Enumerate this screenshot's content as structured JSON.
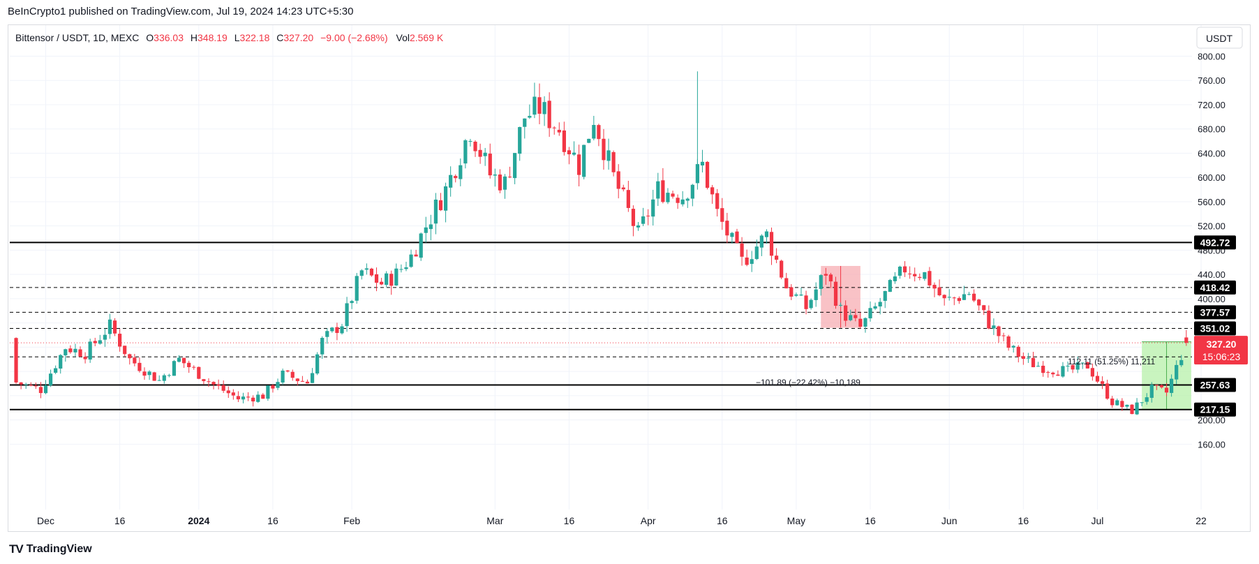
{
  "publisher_line": "BeInCrypto1 published on TradingView.com, Jul 19, 2024 14:23 UTC+5:30",
  "footer": {
    "brand": "TradingView"
  },
  "legend": {
    "symbol": "Bittensor / USDT, 1D, MEXC",
    "o_label": "O",
    "o_value": "336.03",
    "h_label": "H",
    "h_value": "348.19",
    "l_label": "L",
    "l_value": "322.18",
    "c_label": "C",
    "c_value": "327.20",
    "change": "−9.00 (−2.68%)",
    "vol_label": "Vol",
    "vol_value": "2.569 K"
  },
  "currency_button": "USDT",
  "colors": {
    "up": "#26a69a",
    "down": "#f23645",
    "level": "#000000",
    "red_box": "#f7a8ae",
    "green_box": "#b7f0a9",
    "last_price": "#f23645"
  },
  "chart_data": {
    "type": "candlestick",
    "title": "Bittensor / USDT, 1D, MEXC",
    "y_axis": {
      "ticks": [
        "800.00",
        "760.00",
        "720.00",
        "680.00",
        "640.00",
        "600.00",
        "560.00",
        "520.00",
        "480.00",
        "440.00",
        "400.00",
        "200.00",
        "160.00"
      ],
      "tick_values": [
        800,
        760,
        720,
        680,
        640,
        600,
        560,
        520,
        480,
        440,
        400,
        200,
        160
      ],
      "range": [
        138,
        820
      ]
    },
    "x_axis": {
      "labels": [
        "Dec",
        "16",
        "2024",
        "16",
        "Feb",
        "Mar",
        "16",
        "Apr",
        "16",
        "May",
        "16",
        "Jun",
        "16",
        "Jul",
        "22"
      ],
      "label_dates": [
        "2023-12-01",
        "2023-12-16",
        "2024-01-01",
        "2024-01-16",
        "2024-02-01",
        "2024-03-01",
        "2024-03-16",
        "2024-04-01",
        "2024-04-16",
        "2024-05-01",
        "2024-05-16",
        "2024-06-01",
        "2024-06-16",
        "2024-07-01",
        "2024-07-22"
      ],
      "range": [
        "2023-11-24",
        "2024-07-31"
      ]
    },
    "levels": [
      {
        "value": 492.72,
        "label": "492.72",
        "style": "solid"
      },
      {
        "value": 418.42,
        "label": "418.42",
        "style": "dashed"
      },
      {
        "value": 377.57,
        "label": "377.57",
        "style": "dashed"
      },
      {
        "value": 351.02,
        "label": "351.02",
        "style": "dashed"
      },
      {
        "value": 304.05,
        "label": "304.05",
        "style": "dashed"
      },
      {
        "value": 257.63,
        "label": "257.63",
        "style": "solid"
      },
      {
        "value": 217.15,
        "label": "217.15",
        "style": "solid"
      }
    ],
    "last_price": {
      "value": 327.2,
      "label": "327.20",
      "countdown": "15:06:23"
    },
    "measurements": [
      {
        "kind": "down",
        "start": "2024-05-06",
        "end": "2024-05-14",
        "from": 454,
        "to": 352,
        "text": "−101.89 (−22.42%) −10,189"
      },
      {
        "kind": "up",
        "start": "2024-07-10",
        "end": "2024-07-20",
        "from": 217,
        "to": 329,
        "text": "112.11 (51.25%) 11,211"
      }
    ],
    "anchors": [
      [
        "2023-11-25",
        262
      ],
      [
        "2023-11-30",
        250
      ],
      [
        "2023-12-05",
        320
      ],
      [
        "2023-12-09",
        310
      ],
      [
        "2023-12-14",
        355
      ],
      [
        "2023-12-18",
        300
      ],
      [
        "2023-12-24",
        265
      ],
      [
        "2023-12-28",
        300
      ],
      [
        "2024-01-04",
        258
      ],
      [
        "2024-01-09",
        235
      ],
      [
        "2024-01-14",
        240
      ],
      [
        "2024-01-18",
        275
      ],
      [
        "2024-01-23",
        262
      ],
      [
        "2024-01-26",
        330
      ],
      [
        "2024-01-30",
        360
      ],
      [
        "2024-02-03",
        445
      ],
      [
        "2024-02-07",
        425
      ],
      [
        "2024-02-10",
        440
      ],
      [
        "2024-02-13",
        470
      ],
      [
        "2024-02-16",
        520
      ],
      [
        "2024-02-20",
        580
      ],
      [
        "2024-02-25",
        680
      ],
      [
        "2024-02-29",
        605
      ],
      [
        "2024-03-03",
        590
      ],
      [
        "2024-03-07",
        700
      ],
      [
        "2024-03-10",
        715
      ],
      [
        "2024-03-14",
        680
      ],
      [
        "2024-03-18",
        620
      ],
      [
        "2024-03-21",
        700
      ],
      [
        "2024-03-25",
        600
      ],
      [
        "2024-03-30",
        505
      ],
      [
        "2024-04-03",
        580
      ],
      [
        "2024-04-08",
        570
      ],
      [
        "2024-04-12",
        620
      ],
      [
        "2024-04-15",
        540
      ],
      [
        "2024-04-20",
        460
      ],
      [
        "2024-04-25",
        505
      ],
      [
        "2024-04-29",
        420
      ],
      [
        "2024-05-03",
        385
      ],
      [
        "2024-05-07",
        445
      ],
      [
        "2024-05-10",
        380
      ],
      [
        "2024-05-14",
        352
      ],
      [
        "2024-05-18",
        395
      ],
      [
        "2024-05-23",
        450
      ],
      [
        "2024-05-27",
        440
      ],
      [
        "2024-05-31",
        395
      ],
      [
        "2024-06-05",
        410
      ],
      [
        "2024-06-09",
        360
      ],
      [
        "2024-06-13",
        320
      ],
      [
        "2024-06-17",
        295
      ],
      [
        "2024-06-21",
        285
      ],
      [
        "2024-06-25",
        280
      ],
      [
        "2024-06-29",
        290
      ],
      [
        "2024-07-04",
        230
      ],
      [
        "2024-07-08",
        215
      ],
      [
        "2024-07-12",
        250
      ],
      [
        "2024-07-15",
        245
      ],
      [
        "2024-07-19",
        327
      ]
    ]
  }
}
